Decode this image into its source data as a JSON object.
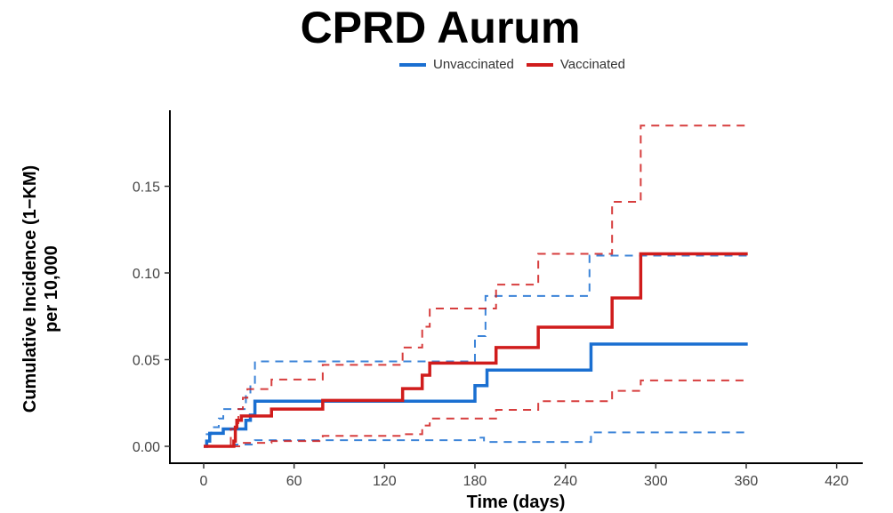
{
  "chart_data": {
    "type": "line",
    "title": "CPRD Aurum",
    "xlabel": "Time (days)",
    "ylabel": [
      "Cumulative Incidence (1−KM)",
      "per 10,000"
    ],
    "xlim": [
      -12,
      440
    ],
    "ylim": [
      -0.006,
      0.192
    ],
    "xticks": [
      0,
      60,
      120,
      180,
      240,
      300,
      360,
      420
    ],
    "yticks": [
      0.0,
      0.05,
      0.1,
      0.15
    ],
    "ytick_labels": [
      "0.00",
      "0.05",
      "0.10",
      "0.15"
    ],
    "grid": false,
    "legend_position": "top",
    "step": true,
    "series": [
      {
        "name": "Unvaccinated",
        "color": "#1a6fd1",
        "style": "solid",
        "x": [
          0,
          2,
          4,
          13,
          28,
          31,
          34,
          180,
          188,
          257,
          361
        ],
        "y": [
          0,
          0.003,
          0.0075,
          0.01,
          0.015,
          0.018,
          0.026,
          0.035,
          0.044,
          0.059,
          0.059
        ]
      },
      {
        "name": "Unvaccinated upper CI",
        "color": "#1a6fd1",
        "style": "dashed",
        "x": [
          0,
          2,
          5,
          10,
          13,
          28,
          31,
          34,
          180,
          187,
          256,
          361
        ],
        "y": [
          0,
          0.007,
          0.011,
          0.016,
          0.0215,
          0.03,
          0.036,
          0.049,
          0.0636,
          0.0867,
          0.11,
          0.11
        ]
      },
      {
        "name": "Unvaccinated lower CI",
        "color": "#1a6fd1",
        "style": "dashed",
        "x": [
          0,
          20,
          34,
          180,
          186,
          257,
          361
        ],
        "y": [
          0,
          0.001,
          0.0035,
          0.005,
          0.0025,
          0.008,
          0.008
        ]
      },
      {
        "name": "Vaccinated",
        "color": "#d01c1c",
        "style": "solid",
        "x": [
          0,
          20,
          21,
          22,
          25,
          45,
          79,
          132,
          145,
          150,
          194,
          222,
          271,
          290,
          361
        ],
        "y": [
          0,
          0.003,
          0.011,
          0.015,
          0.0175,
          0.0215,
          0.0265,
          0.0333,
          0.041,
          0.048,
          0.057,
          0.0687,
          0.0856,
          0.111,
          0.111
        ]
      },
      {
        "name": "Vaccinated upper CI",
        "color": "#d01c1c",
        "style": "dashed",
        "x": [
          0,
          18,
          23,
          26,
          29,
          45,
          79,
          132,
          145,
          150,
          194,
          222,
          271,
          290,
          361
        ],
        "y": [
          0,
          0.01,
          0.0215,
          0.028,
          0.033,
          0.0385,
          0.047,
          0.057,
          0.069,
          0.0795,
          0.0933,
          0.111,
          0.141,
          0.185,
          0.185
        ]
      },
      {
        "name": "Vaccinated lower CI",
        "color": "#d01c1c",
        "style": "dashed",
        "x": [
          0,
          25,
          45,
          79,
          132,
          145,
          150,
          194,
          222,
          271,
          290,
          361
        ],
        "y": [
          0,
          0.002,
          0.003,
          0.006,
          0.007,
          0.012,
          0.016,
          0.021,
          0.026,
          0.032,
          0.038,
          0.038
        ]
      }
    ],
    "legend": [
      {
        "label": "Unvaccinated",
        "color": "#1a6fd1"
      },
      {
        "label": "Vaccinated",
        "color": "#d01c1c"
      }
    ]
  }
}
